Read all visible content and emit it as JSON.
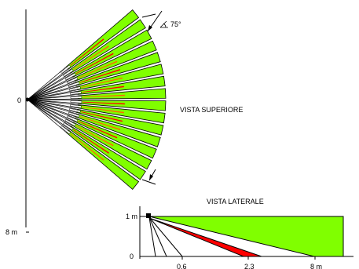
{
  "top_view": {
    "title": "VISTA SUPERIORE",
    "origin_label": "0",
    "range_label": "8 m",
    "angle_label": "75°"
  },
  "side_view": {
    "title": "VISTA LATERALE",
    "height_label": "1 m",
    "zero_label": "0",
    "distance_labels": [
      "0.6",
      "2.3",
      "8 m"
    ]
  },
  "colors": {
    "zone_green": "#80ff00",
    "zone_red": "#ff0000",
    "zone_orange": "#ff6600",
    "line": "#000000"
  }
}
